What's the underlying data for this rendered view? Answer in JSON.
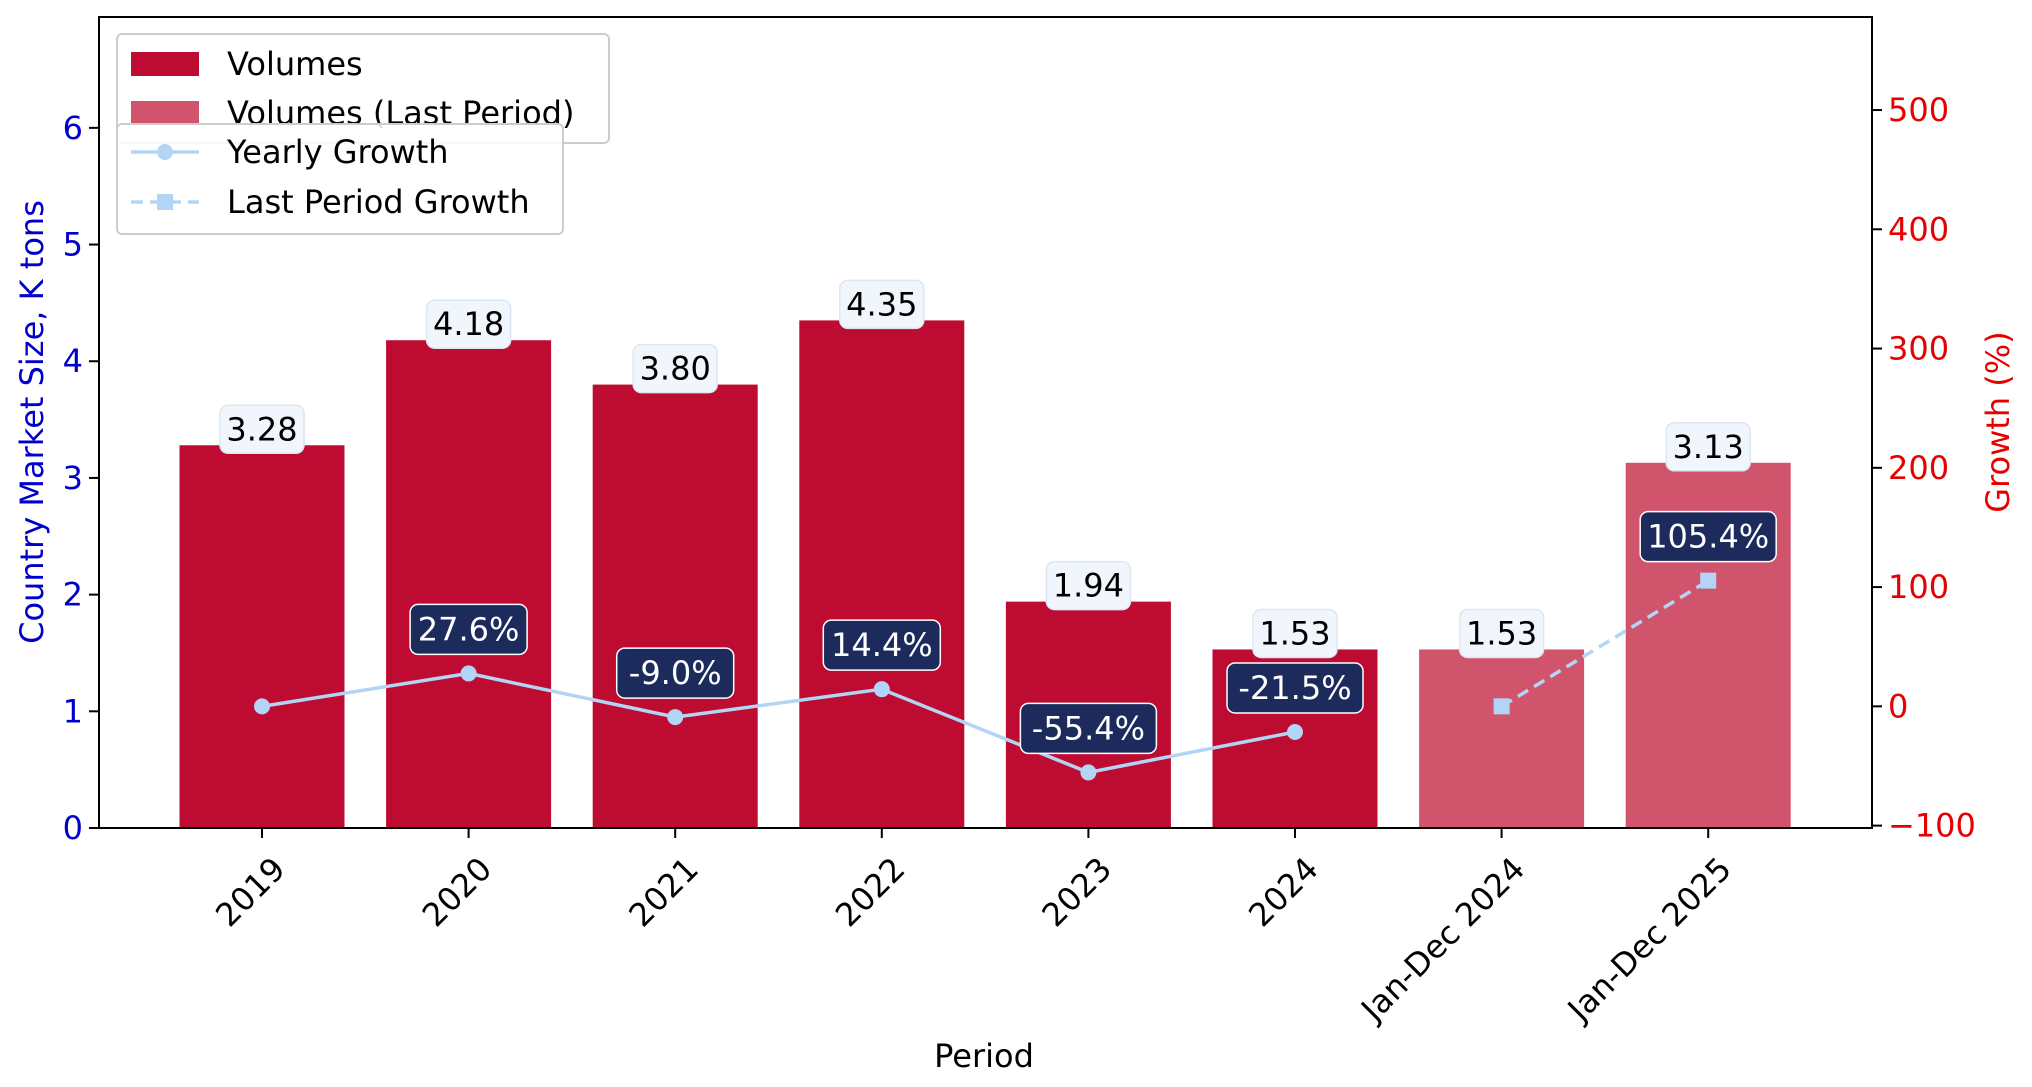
{
  "chart_data": {
    "type": "bar",
    "categories": [
      "2019",
      "2020",
      "2021",
      "2022",
      "2023",
      "2024",
      "Jan-Dec 2024",
      "Jan-Dec 2025"
    ],
    "xlabel": "Period",
    "ylabel": "Country Market Size, K tons",
    "y2label": "Growth (%)",
    "ylim": [
      0,
      6.95
    ],
    "y2lim": [
      -102,
      578
    ],
    "yticks": [
      0,
      1,
      2,
      3,
      4,
      5,
      6
    ],
    "y2ticks": [
      -100,
      0,
      100,
      200,
      300,
      400,
      500
    ],
    "y2tick_labels": [
      "−100",
      "0",
      "100",
      "200",
      "300",
      "400",
      "500"
    ],
    "series": [
      {
        "name": "Volumes",
        "kind": "bar",
        "axis": "left",
        "color": "#bd0b31",
        "values": [
          3.28,
          4.18,
          3.8,
          4.35,
          1.94,
          1.53,
          null,
          null
        ],
        "labels": [
          "3.28",
          "4.18",
          "3.80",
          "4.35",
          "1.94",
          "1.53",
          null,
          null
        ]
      },
      {
        "name": "Volumes (Last Period)",
        "kind": "bar",
        "axis": "left",
        "color": "#d1546d",
        "values": [
          null,
          null,
          null,
          null,
          null,
          null,
          1.53,
          3.13
        ],
        "labels": [
          null,
          null,
          null,
          null,
          null,
          null,
          "1.53",
          "3.13"
        ]
      },
      {
        "name": "Yearly Growth",
        "kind": "line",
        "axis": "right",
        "color": "#b3d5f5",
        "marker": "circle",
        "dash": "solid",
        "values": [
          0,
          27.6,
          -9.0,
          14.4,
          -55.4,
          -21.5,
          null,
          null
        ],
        "labels": [
          null,
          "27.6%",
          "-9.0%",
          "14.4%",
          "-55.4%",
          "-21.5%",
          null,
          null
        ]
      },
      {
        "name": "Last Period Growth",
        "kind": "line",
        "axis": "right",
        "color": "#b3d5f5",
        "marker": "square",
        "dash": "dashed",
        "values": [
          null,
          null,
          null,
          null,
          null,
          null,
          0,
          105.4
        ],
        "labels": [
          null,
          null,
          null,
          null,
          null,
          null,
          null,
          "105.4%"
        ]
      }
    ],
    "legend_placement": "top-left",
    "colors": {
      "left_axis": "#0000cc",
      "right_axis": "#e60000",
      "growth_label_bg": "#1c2b5c",
      "value_label_bg": "#f0f6fc"
    }
  }
}
